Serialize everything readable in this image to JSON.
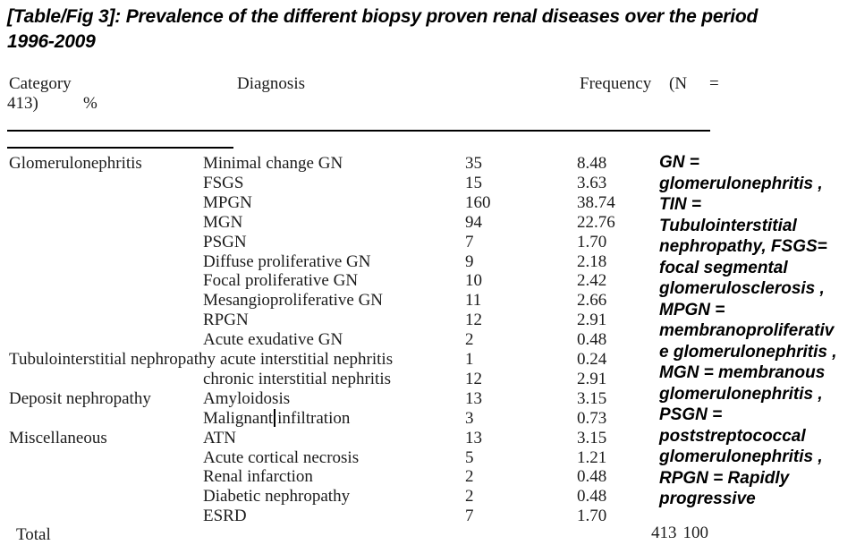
{
  "title": {
    "line1": "[Table/Fig 3]: Prevalence of the different biopsy proven renal diseases over the period",
    "line2": "1996-2009"
  },
  "table": {
    "headers": {
      "category": "Category",
      "diagnosis": "Diagnosis",
      "frequency_word": "Frequency",
      "frequency_paren": "(N",
      "frequency_equals": "=",
      "frequency_wrap": "413)",
      "percent": "%"
    },
    "rows": [
      {
        "category": "Glomerulonephritis",
        "diagnosis": "Minimal change GN",
        "frequency": "35",
        "percent": "8.48"
      },
      {
        "category": "",
        "diagnosis": "FSGS",
        "frequency": "15",
        "percent": "3.63"
      },
      {
        "category": "",
        "diagnosis": "MPGN",
        "frequency": "160",
        "percent": "38.74"
      },
      {
        "category": "",
        "diagnosis": "MGN",
        "frequency": "94",
        "percent": "22.76"
      },
      {
        "category": "",
        "diagnosis": "PSGN",
        "frequency": "7",
        "percent": "1.70"
      },
      {
        "category": "",
        "diagnosis": "Diffuse proliferative GN",
        "frequency": "9",
        "percent": "2.18"
      },
      {
        "category": "",
        "diagnosis": "Focal proliferative GN",
        "frequency": "10",
        "percent": "2.42"
      },
      {
        "category": "",
        "diagnosis": "Mesangioproliferative GN",
        "frequency": "11",
        "percent": "2.66"
      },
      {
        "category": "",
        "diagnosis": "RPGN",
        "frequency": "12",
        "percent": "2.91"
      },
      {
        "category": "",
        "diagnosis": "Acute exudative GN",
        "frequency": "2",
        "percent": "0.48"
      },
      {
        "category": "Tubulointerstitial nephropathy",
        "diagnosis": "acute interstitial nephritis",
        "frequency": "1",
        "percent": "0.24"
      },
      {
        "category": "",
        "diagnosis": "chronic interstitial nephritis",
        "frequency": "12",
        "percent": "2.91"
      },
      {
        "category": "Deposit nephropathy",
        "diagnosis": "Amyloidosis",
        "frequency": "13",
        "percent": "3.15"
      },
      {
        "category": "",
        "diagnosis": "Malignant|infiltration",
        "frequency": "3",
        "percent": "0.73"
      },
      {
        "category": "Miscellaneous",
        "diagnosis": "ATN",
        "frequency": "13",
        "percent": "3.15"
      },
      {
        "category": "",
        "diagnosis": "Acute cortical necrosis",
        "frequency": "5",
        "percent": "1.21"
      },
      {
        "category": "",
        "diagnosis": "Renal infarction",
        "frequency": "2",
        "percent": "0.48"
      },
      {
        "category": "",
        "diagnosis": "Diabetic nephropathy",
        "frequency": "2",
        "percent": "0.48"
      },
      {
        "category": "",
        "diagnosis": "ESRD",
        "frequency": "7",
        "percent": "1.70"
      }
    ],
    "total": {
      "label": "Total",
      "frequency": "413",
      "percent": "100"
    }
  },
  "note": {
    "lines": [
      "GN =",
      "glomerulonephritis ,",
      "TIN =",
      "Tubulointerstitial",
      "nephropathy, FSGS=",
      "focal segmental",
      "glomerulosclerosis ,",
      "MPGN =",
      "membranoproliferativ",
      "e glomerulonephritis ,",
      "MGN = membranous",
      "glomerulonephritis ,",
      "PSGN =",
      "poststreptococcal",
      "glomerulonephritis ,",
      "RPGN = Rapidly",
      "progressive"
    ]
  },
  "colors": {
    "text": "#1c1c1c",
    "bold_text": "#000000",
    "background": "#ffffff",
    "rule": "#000000"
  }
}
